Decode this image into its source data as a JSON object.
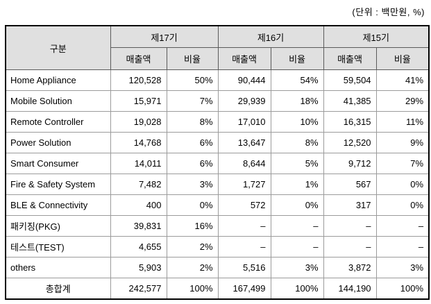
{
  "unit_note": "(단위 : 백만원, %)",
  "table": {
    "category_header": "구분",
    "periods": [
      "제17기",
      "제16기",
      "제15기"
    ],
    "sub_headers": [
      "매출액",
      "비율"
    ],
    "rows": [
      {
        "label": "Home Appliance",
        "values": [
          "120,528",
          "50%",
          "90,444",
          "54%",
          "59,504",
          "41%"
        ]
      },
      {
        "label": "Mobile Solution",
        "values": [
          "15,971",
          "7%",
          "29,939",
          "18%",
          "41,385",
          "29%"
        ]
      },
      {
        "label": "Remote Controller",
        "values": [
          "19,028",
          "8%",
          "17,010",
          "10%",
          "16,315",
          "11%"
        ]
      },
      {
        "label": "Power Solution",
        "values": [
          "14,768",
          "6%",
          "13,647",
          "8%",
          "12,520",
          "9%"
        ]
      },
      {
        "label": "Smart Consumer",
        "values": [
          "14,011",
          "6%",
          "8,644",
          "5%",
          "9,712",
          "7%"
        ]
      },
      {
        "label": "Fire & Safety System",
        "values": [
          "7,482",
          "3%",
          "1,727",
          "1%",
          "567",
          "0%"
        ]
      },
      {
        "label": "BLE & Connectivity",
        "values": [
          "400",
          "0%",
          "572",
          "0%",
          "317",
          "0%"
        ]
      },
      {
        "label": "패키징(PKG)",
        "values": [
          "39,831",
          "16%",
          "–",
          "–",
          "–",
          "–"
        ]
      },
      {
        "label": "테스트(TEST)",
        "values": [
          "4,655",
          "2%",
          "–",
          "–",
          "–",
          "–"
        ]
      },
      {
        "label": "others",
        "values": [
          "5,903",
          "2%",
          "5,516",
          "3%",
          "3,872",
          "3%"
        ]
      },
      {
        "label": "총합계",
        "values": [
          "242,577",
          "100%",
          "167,499",
          "100%",
          "144,190",
          "100%"
        ],
        "is_total": true
      }
    ]
  },
  "colors": {
    "header_bg": "#e0e0e0",
    "outer_border": "#000000",
    "inner_border_body": "#9b9b9b",
    "inner_border_header": "#5a5a5a",
    "text": "#000000",
    "background": "#ffffff"
  }
}
